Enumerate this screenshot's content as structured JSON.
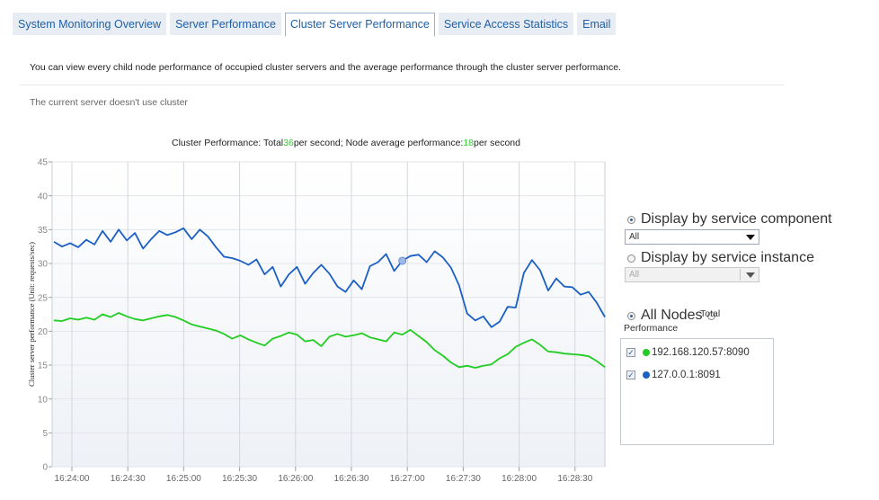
{
  "tabs": [
    {
      "label": "System Monitoring Overview",
      "active": false
    },
    {
      "label": "Server Performance",
      "active": false
    },
    {
      "label": "Cluster Server Performance",
      "active": true
    },
    {
      "label": "Service Access Statistics",
      "active": false
    },
    {
      "label": "Email",
      "active": false
    }
  ],
  "description": "You can view every child node performance of occupied cluster servers and the average performance through the cluster server performance.",
  "note": "The current server doesn't use cluster",
  "chart_title": {
    "prefix": "Cluster Performance: Total",
    "total": "36",
    "middle": "per second; Node average performance:",
    "average": "18",
    "suffix": "per second"
  },
  "options": {
    "by_component_label": "Display by service component",
    "component_select": "All",
    "by_instance_label": "Display by service instance",
    "instance_select": "All",
    "all_nodes_label": "All Nodes",
    "total_performance_label": "Total Performance"
  },
  "nodes": [
    {
      "label": "192.168.120.57:8090",
      "color": "#22cc22",
      "checked": true
    },
    {
      "label": "127.0.0.1:8091",
      "color": "#1a5fc4",
      "checked": true
    }
  ],
  "chart_data": {
    "type": "line",
    "ylabel": "Cluster server performance (Unit: requests/sec)",
    "ylim": [
      0,
      45
    ],
    "yticks": [
      0,
      5,
      10,
      15,
      20,
      25,
      30,
      35,
      40,
      45
    ],
    "xticks": [
      "16:24:00",
      "16:24:30",
      "16:25:00",
      "16:25:30",
      "16:26:00",
      "16:26:30",
      "16:27:00",
      "16:27:30",
      "16:28:00",
      "16:28:30"
    ],
    "grid": true,
    "series": [
      {
        "name": "127.0.0.1:8091",
        "color": "#1a5fc4",
        "values": [
          33.2,
          32.5,
          33.0,
          32.4,
          33.5,
          32.8,
          34.8,
          33.2,
          35.0,
          33.4,
          34.5,
          32.2,
          33.6,
          34.8,
          34.2,
          34.6,
          35.2,
          33.6,
          35.0,
          34.0,
          32.4,
          31.0,
          30.8,
          30.4,
          29.8,
          30.6,
          28.4,
          29.5,
          26.6,
          28.4,
          29.5,
          27.0,
          28.6,
          29.8,
          28.5,
          26.6,
          25.8,
          27.5,
          26.2,
          29.6,
          30.2,
          31.4,
          28.9,
          30.4,
          31.1,
          31.3,
          30.2,
          31.8,
          30.9,
          29.4,
          26.8,
          22.6,
          21.6,
          22.2,
          20.6,
          21.4,
          23.6,
          23.5,
          28.6,
          30.5,
          29.0,
          26.0,
          27.8,
          26.6,
          26.5,
          25.4,
          25.8,
          24.2,
          22.1
        ]
      },
      {
        "name": "192.168.120.57:8090",
        "color": "#22cc22",
        "values": [
          21.6,
          21.5,
          21.9,
          21.7,
          22.0,
          21.7,
          22.5,
          22.1,
          22.7,
          22.2,
          21.8,
          21.6,
          21.9,
          22.2,
          22.4,
          22.1,
          21.6,
          21.0,
          20.7,
          20.4,
          20.1,
          19.6,
          18.9,
          19.4,
          18.8,
          18.3,
          17.9,
          18.9,
          19.3,
          19.8,
          19.5,
          18.5,
          18.7,
          17.8,
          19.2,
          19.6,
          19.2,
          19.4,
          19.7,
          19.1,
          18.8,
          18.5,
          19.8,
          19.5,
          20.2,
          19.3,
          18.4,
          17.2,
          16.4,
          15.4,
          14.7,
          14.9,
          14.6,
          14.9,
          15.1,
          16.0,
          16.6,
          17.7,
          18.3,
          18.8,
          18.0,
          17.0,
          16.9,
          16.7,
          16.6,
          16.5,
          16.3,
          15.6,
          14.7
        ]
      }
    ]
  }
}
